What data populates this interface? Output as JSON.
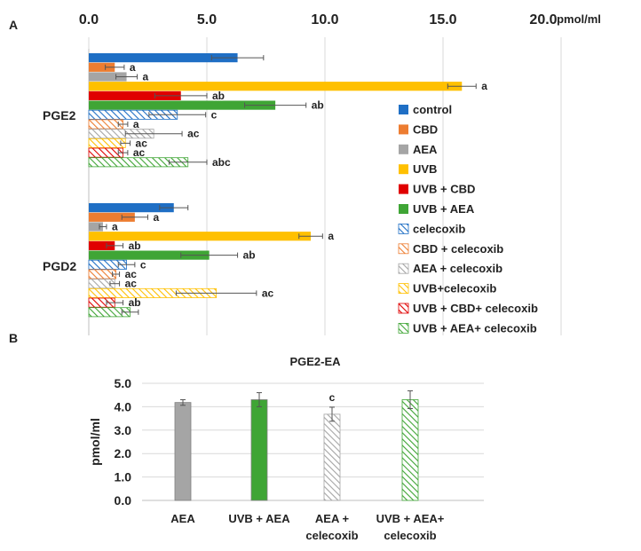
{
  "chart_data": [
    {
      "panel": "A",
      "type": "bar",
      "orientation": "horizontal",
      "unit": "pmol/ml",
      "xlim": [
        0,
        20
      ],
      "ticks": [
        "0.0",
        "5.0",
        "10.0",
        "15.0",
        "20.0"
      ],
      "grid": true,
      "legend_position": "right",
      "categories": [
        "PGE2",
        "PGD2"
      ],
      "series": [
        {
          "name": "control",
          "color": "#1f6fc5",
          "pattern": "solid",
          "values": [
            6.3,
            3.6
          ],
          "errors": [
            1.1,
            0.6
          ],
          "sig": [
            "",
            ""
          ]
        },
        {
          "name": "CBD",
          "color": "#ed7d31",
          "pattern": "solid",
          "values": [
            1.1,
            1.95
          ],
          "errors": [
            0.4,
            0.55
          ],
          "sig": [
            "a",
            "a"
          ]
        },
        {
          "name": "AEA",
          "color": "#a5a5a5",
          "pattern": "solid",
          "values": [
            1.6,
            0.6
          ],
          "errors": [
            0.45,
            0.15
          ],
          "sig": [
            "a",
            "a"
          ]
        },
        {
          "name": "UVB",
          "color": "#ffc000",
          "pattern": "solid",
          "values": [
            15.8,
            9.4
          ],
          "errors": [
            0.6,
            0.5
          ],
          "sig": [
            "a",
            "a"
          ]
        },
        {
          "name": "UVB + CBD",
          "color": "#e00000",
          "pattern": "solid",
          "values": [
            3.9,
            1.1
          ],
          "errors": [
            1.1,
            0.35
          ],
          "sig": [
            "ab",
            "ab"
          ]
        },
        {
          "name": "UVB + AEA",
          "color": "#3fa535",
          "pattern": "solid",
          "values": [
            7.9,
            5.1
          ],
          "errors": [
            1.3,
            1.2
          ],
          "sig": [
            "ab",
            "ab"
          ]
        },
        {
          "name": "celecoxib",
          "color": "#1f6fc5",
          "pattern": "hatch",
          "values": [
            3.75,
            1.6
          ],
          "errors": [
            1.2,
            0.35
          ],
          "sig": [
            "c",
            "c"
          ]
        },
        {
          "name": "CBD + celecoxib",
          "color": "#ed7d31",
          "pattern": "hatch",
          "values": [
            1.45,
            1.15
          ],
          "errors": [
            0.2,
            0.15
          ],
          "sig": [
            "a",
            "ac"
          ]
        },
        {
          "name": "AEA + celecoxib",
          "color": "#a5a5a5",
          "pattern": "hatch",
          "values": [
            2.75,
            1.1
          ],
          "errors": [
            1.2,
            0.2
          ],
          "sig": [
            "ac",
            "ac"
          ]
        },
        {
          "name": "UVB+celecoxib",
          "color": "#ffc000",
          "pattern": "hatch",
          "values": [
            1.55,
            5.4
          ],
          "errors": [
            0.2,
            1.7
          ],
          "sig": [
            "ac",
            "ac"
          ]
        },
        {
          "name": "UVB + CBD+ celecoxib",
          "color": "#e00000",
          "pattern": "hatch",
          "values": [
            1.45,
            1.1
          ],
          "errors": [
            0.2,
            0.35
          ],
          "sig": [
            "ac",
            "ab"
          ]
        },
        {
          "name": "UVB + AEA+ celecoxib",
          "color": "#3fa535",
          "pattern": "hatch",
          "values": [
            4.2,
            1.75
          ],
          "errors": [
            0.8,
            0.35
          ],
          "sig": [
            "abc",
            ""
          ]
        }
      ]
    },
    {
      "panel": "B",
      "type": "bar",
      "title": "PGE2-EA",
      "ylabel": "pmol/ml",
      "ylim": [
        0,
        5
      ],
      "ticks": [
        "0.0",
        "1.0",
        "2.0",
        "3.0",
        "4.0",
        "5.0"
      ],
      "grid": true,
      "categories": [
        {
          "lines": [
            "AEA"
          ],
          "color": "#a5a5a5",
          "pattern": "solid",
          "value": 4.18,
          "error": 0.12,
          "sig": ""
        },
        {
          "lines": [
            "UVB + AEA"
          ],
          "color": "#3fa535",
          "pattern": "solid",
          "value": 4.3,
          "error": 0.3,
          "sig": ""
        },
        {
          "lines": [
            "AEA +",
            "celecoxib"
          ],
          "color": "#a5a5a5",
          "pattern": "hatch",
          "value": 3.68,
          "error": 0.3,
          "sig": "c"
        },
        {
          "lines": [
            "UVB + AEA+",
            "celecoxib"
          ],
          "color": "#3fa535",
          "pattern": "hatch",
          "value": 4.3,
          "error": 0.38,
          "sig": ""
        }
      ]
    }
  ]
}
